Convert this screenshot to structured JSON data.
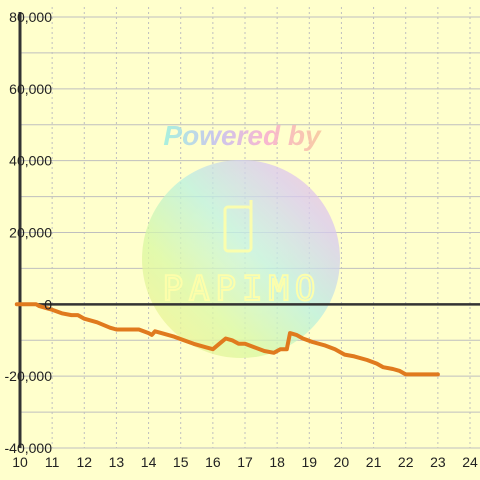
{
  "chart_data": {
    "type": "line",
    "title": "",
    "xlabel": "",
    "ylabel": "",
    "xlim": [
      10,
      24
    ],
    "ylim": [
      -40000,
      80000
    ],
    "x_ticks": [
      10,
      11,
      12,
      13,
      14,
      15,
      16,
      17,
      18,
      19,
      20,
      21,
      22,
      23,
      24
    ],
    "y_ticks": [
      -40000,
      -20000,
      0,
      20000,
      40000,
      60000,
      80000
    ],
    "y_tick_labels": [
      "-40,000",
      "-20,000",
      "0",
      "20,000",
      "40,000",
      "60,000",
      "80,000"
    ],
    "grid": true,
    "colors": {
      "background": "#ffffcc",
      "grid": "#bfbfbf",
      "axis": "#333333",
      "line": "#e07a1e"
    },
    "series": [
      {
        "color": "#e07a1e",
        "points": [
          [
            9.9,
            0
          ],
          [
            10.5,
            0
          ],
          [
            10.6,
            -500
          ],
          [
            10.8,
            -1000
          ],
          [
            11.0,
            -1500
          ],
          [
            11.3,
            -2500
          ],
          [
            11.6,
            -3000
          ],
          [
            11.8,
            -3000
          ],
          [
            12.0,
            -4000
          ],
          [
            12.4,
            -5000
          ],
          [
            12.8,
            -6500
          ],
          [
            13.0,
            -7000
          ],
          [
            13.4,
            -7000
          ],
          [
            13.7,
            -7000
          ],
          [
            14.0,
            -8000
          ],
          [
            14.1,
            -8500
          ],
          [
            14.2,
            -7500
          ],
          [
            14.4,
            -8000
          ],
          [
            14.8,
            -9000
          ],
          [
            15.1,
            -10000
          ],
          [
            15.4,
            -11000
          ],
          [
            15.8,
            -12000
          ],
          [
            16.0,
            -12500
          ],
          [
            16.2,
            -11000
          ],
          [
            16.4,
            -9500
          ],
          [
            16.6,
            -10000
          ],
          [
            16.8,
            -11000
          ],
          [
            17.0,
            -11000
          ],
          [
            17.3,
            -12000
          ],
          [
            17.6,
            -13000
          ],
          [
            17.9,
            -13500
          ],
          [
            18.1,
            -12500
          ],
          [
            18.3,
            -12500
          ],
          [
            18.4,
            -8000
          ],
          [
            18.6,
            -8500
          ],
          [
            18.8,
            -9500
          ],
          [
            19.1,
            -10500
          ],
          [
            19.5,
            -11500
          ],
          [
            19.8,
            -12500
          ],
          [
            20.1,
            -14000
          ],
          [
            20.4,
            -14500
          ],
          [
            20.8,
            -15500
          ],
          [
            21.1,
            -16500
          ],
          [
            21.3,
            -17500
          ],
          [
            21.6,
            -18000
          ],
          [
            21.8,
            -18500
          ],
          [
            22.0,
            -19500
          ],
          [
            22.5,
            -19500
          ],
          [
            23.0,
            -19500
          ]
        ]
      }
    ]
  },
  "watermark": {
    "powered_text": "Powered by",
    "brand_text": "PAPIMO"
  }
}
